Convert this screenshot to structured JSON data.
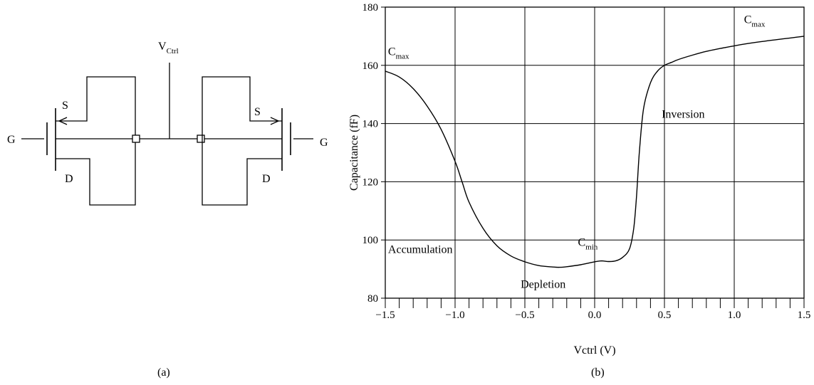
{
  "panel_a": {
    "caption": "(a)",
    "vctrl_label": "V",
    "vctrl_sub": "Ctrl",
    "gate_left": "G",
    "gate_right": "G",
    "source_left": "S",
    "source_right": "S",
    "drain_left": "D",
    "drain_right": "D"
  },
  "panel_b": {
    "caption": "(b)"
  },
  "chart_data": {
    "type": "line",
    "xlabel": "Vctrl (V)",
    "ylabel": "Capacitance (fF)",
    "xlim": [
      -1.5,
      1.5
    ],
    "ylim": [
      80,
      180
    ],
    "x_ticks": [
      -1.5,
      -1.0,
      -0.5,
      0.0,
      0.5,
      1.0,
      1.5
    ],
    "x_tick_labels": [
      "−1.5",
      "−1.0",
      "−0.5",
      "0.0",
      "0.5",
      "1.0",
      "1.5"
    ],
    "y_ticks": [
      80,
      100,
      120,
      140,
      160,
      180
    ],
    "y_tick_labels": [
      "80",
      "100",
      "120",
      "140",
      "160",
      "180"
    ],
    "x_minor_step": 0.1,
    "grid": true,
    "series": [
      {
        "x": [
          -1.5,
          -1.4,
          -1.3,
          -1.2,
          -1.1,
          -1.0,
          -0.95,
          -0.9,
          -0.8,
          -0.7,
          -0.6,
          -0.5,
          -0.4,
          -0.3,
          -0.25,
          -0.2,
          -0.1,
          0.0,
          0.05,
          0.1,
          0.15,
          0.2,
          0.25,
          0.28,
          0.3,
          0.32,
          0.35,
          0.4,
          0.45,
          0.5,
          0.55,
          0.6,
          0.7,
          0.8,
          0.9,
          1.0,
          1.1,
          1.2,
          1.3,
          1.4,
          1.5
        ],
        "y": [
          158,
          156,
          152,
          146,
          138,
          127,
          120,
          113,
          104,
          98,
          94.5,
          92.5,
          91.2,
          90.7,
          90.6,
          90.8,
          91.5,
          92.5,
          92.8,
          92.6,
          92.8,
          94,
          97,
          104,
          115,
          130,
          145,
          154,
          158,
          160,
          161,
          162,
          163.5,
          164.8,
          165.8,
          166.7,
          167.5,
          168.2,
          168.8,
          169.4,
          170
        ]
      }
    ],
    "annotations": [
      {
        "text": "C",
        "sub": "max",
        "x": -1.48,
        "y": 163.5
      },
      {
        "text": "C",
        "sub": "max",
        "x": 1.07,
        "y": 174.5
      },
      {
        "text": "C",
        "sub": "min",
        "x": -0.12,
        "y": 98
      },
      {
        "text": "Inversion",
        "x": 0.48,
        "y": 142
      },
      {
        "text": "Accumulation",
        "x": -1.48,
        "y": 95.5
      },
      {
        "text": "Depletion",
        "x": -0.53,
        "y": 83.5
      }
    ]
  }
}
